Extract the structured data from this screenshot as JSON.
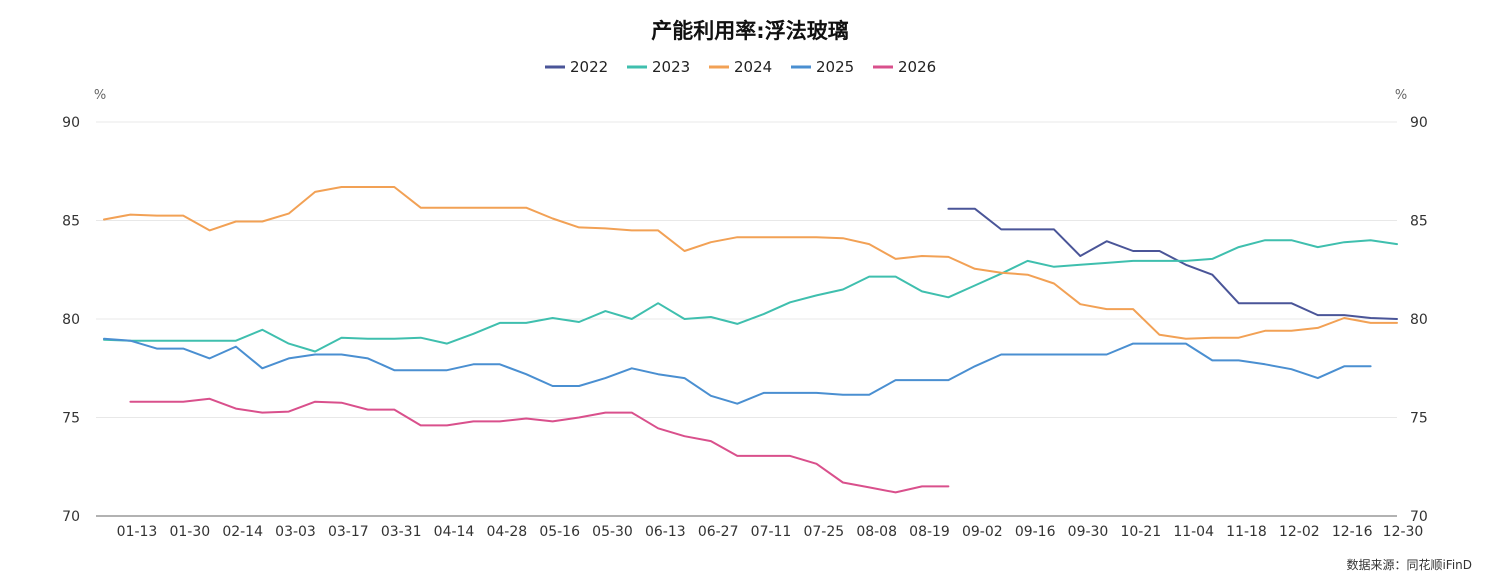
{
  "chart_data": {
    "type": "line",
    "title": "产能利用率:浮法玻璃",
    "source": "数据来源：同花顺iFinD",
    "y_unit_left": "%",
    "y_unit_right": "%",
    "ylim": [
      70,
      90
    ],
    "yticks": [
      70,
      75,
      80,
      85,
      90
    ],
    "grid": true,
    "legend_position": "top-center",
    "x_tick_labels": [
      "01-13",
      "01-30",
      "02-14",
      "03-03",
      "03-17",
      "03-31",
      "04-14",
      "04-28",
      "05-16",
      "05-30",
      "06-13",
      "06-27",
      "07-11",
      "07-25",
      "08-08",
      "08-19",
      "09-02",
      "09-16",
      "09-30",
      "10-21",
      "11-04",
      "11-18",
      "12-02",
      "12-16",
      "12-30"
    ],
    "x_positions_note": "x values are week indices 0-49 across the calendar year",
    "series": [
      {
        "name": "2022",
        "color": "#4a5598",
        "x": [
          32,
          33,
          34,
          35,
          36,
          37,
          38,
          39,
          40,
          41,
          42,
          43,
          44,
          45,
          46,
          47,
          48,
          49
        ],
        "y": [
          85.6,
          85.6,
          84.55,
          84.55,
          84.55,
          83.2,
          83.95,
          83.45,
          83.45,
          82.75,
          82.25,
          80.8,
          80.8,
          80.8,
          80.2,
          80.2,
          80.05,
          80.0
        ]
      },
      {
        "name": "2023",
        "color": "#3fbfae",
        "x": [
          0,
          1,
          2,
          3,
          4,
          5,
          6,
          7,
          8,
          9,
          10,
          11,
          12,
          13,
          14,
          15,
          16,
          17,
          18,
          19,
          20,
          21,
          22,
          23,
          24,
          25,
          26,
          27,
          28,
          29,
          30,
          31,
          32,
          33,
          34,
          35,
          36,
          37,
          38,
          39,
          40,
          41,
          42,
          43,
          44,
          45,
          46,
          47,
          48,
          49
        ],
        "y": [
          78.95,
          78.9,
          78.9,
          78.9,
          78.9,
          78.9,
          79.45,
          78.75,
          78.35,
          79.05,
          79.0,
          79.0,
          79.05,
          78.75,
          79.25,
          79.8,
          79.8,
          80.05,
          79.85,
          80.4,
          80.0,
          80.8,
          80.0,
          80.1,
          79.75,
          80.25,
          80.85,
          81.2,
          81.5,
          82.15,
          82.15,
          81.4,
          81.1,
          81.7,
          82.3,
          82.95,
          82.65,
          82.75,
          82.85,
          82.95,
          82.95,
          82.95,
          83.05,
          83.65,
          84.0,
          84.0,
          83.65,
          83.9,
          84.0,
          83.8
        ]
      },
      {
        "name": "2024",
        "color": "#f2a155",
        "x": [
          0,
          1,
          2,
          3,
          4,
          5,
          6,
          7,
          8,
          9,
          10,
          11,
          12,
          13,
          14,
          15,
          16,
          17,
          18,
          19,
          20,
          21,
          22,
          23,
          24,
          25,
          26,
          27,
          28,
          29,
          30,
          31,
          32,
          33,
          34,
          35,
          36,
          37,
          38,
          39,
          40,
          41,
          42,
          43,
          44,
          45,
          46,
          47,
          48,
          49
        ],
        "y": [
          85.05,
          85.3,
          85.25,
          85.25,
          84.5,
          84.95,
          84.95,
          85.35,
          86.45,
          86.7,
          86.7,
          86.7,
          85.65,
          85.65,
          85.65,
          85.65,
          85.65,
          85.1,
          84.65,
          84.6,
          84.5,
          84.5,
          83.45,
          83.9,
          84.15,
          84.15,
          84.15,
          84.15,
          84.1,
          83.8,
          83.05,
          83.2,
          83.15,
          82.55,
          82.35,
          82.25,
          81.8,
          80.75,
          80.5,
          80.5,
          79.2,
          79.0,
          79.05,
          79.05,
          79.4,
          79.4,
          79.55,
          80.05,
          79.8,
          79.8
        ]
      },
      {
        "name": "2025",
        "color": "#4a8fd1",
        "x": [
          0,
          1,
          2,
          3,
          4,
          5,
          6,
          7,
          8,
          9,
          10,
          11,
          12,
          13,
          14,
          15,
          16,
          17,
          18,
          19,
          20,
          21,
          22,
          23,
          24,
          25,
          26,
          27,
          28,
          29,
          30,
          31,
          32,
          33,
          34,
          35,
          36,
          37,
          38,
          39,
          40,
          41,
          42,
          43,
          44,
          45,
          46,
          47,
          48
        ],
        "y": [
          79.0,
          78.9,
          78.5,
          78.5,
          78.0,
          78.6,
          77.5,
          78.0,
          78.2,
          78.2,
          78.0,
          77.4,
          77.4,
          77.4,
          77.7,
          77.7,
          77.2,
          76.6,
          76.6,
          77.0,
          77.5,
          77.2,
          77.0,
          76.1,
          75.7,
          76.25,
          76.25,
          76.25,
          76.15,
          76.15,
          76.9,
          76.9,
          76.9,
          77.6,
          78.2,
          78.2,
          78.2,
          78.2,
          78.2,
          78.75,
          78.75,
          78.75,
          77.9,
          77.9,
          77.7,
          77.45,
          77.0,
          77.6,
          77.6
        ]
      },
      {
        "name": "2026",
        "color": "#d9508c",
        "x": [
          1,
          2,
          3,
          4,
          5,
          6,
          7,
          8,
          9,
          10,
          11,
          12,
          13,
          14,
          15,
          16,
          17,
          18,
          19,
          20,
          21,
          22,
          23,
          24,
          25,
          26,
          27,
          28,
          29,
          30,
          31,
          32
        ],
        "y": [
          75.8,
          75.8,
          75.8,
          75.95,
          75.45,
          75.25,
          75.3,
          75.8,
          75.75,
          75.4,
          75.4,
          74.6,
          74.6,
          74.8,
          74.8,
          74.95,
          74.8,
          75.0,
          75.25,
          75.25,
          74.45,
          74.05,
          73.8,
          73.05,
          73.05,
          73.05,
          72.65,
          71.7,
          71.45,
          71.2,
          71.5,
          71.5
        ]
      }
    ]
  }
}
